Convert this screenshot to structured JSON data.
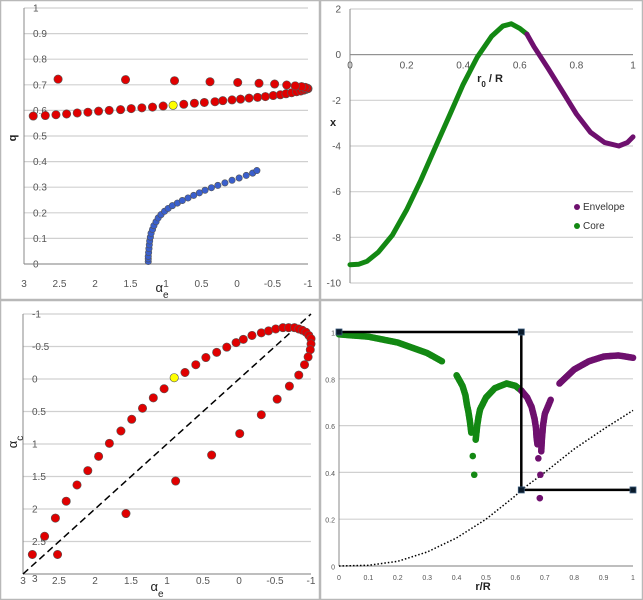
{
  "chart_data": [
    {
      "type": "scatter",
      "xlabel_main": "α",
      "xlabel_sub": "e",
      "ylabel": "q",
      "xlim": [
        3,
        -1
      ],
      "ylim": [
        0,
        1
      ],
      "x_reversed": true,
      "xticks": [
        "3",
        "2.5",
        "2",
        "1.5",
        "1",
        "0.5",
        "0",
        "-0.5",
        "-1"
      ],
      "yticks": [
        "0",
        "0.1",
        "0.2",
        "0.3",
        "0.4",
        "0.5",
        "0.6",
        "0.7",
        "0.8",
        "0.9",
        "1"
      ],
      "grid": "horizontal",
      "series": [
        {
          "color": "#e00000",
          "points": [
            [
              2.87,
              0.578
            ],
            [
              2.7,
              0.58
            ],
            [
              2.55,
              0.583
            ],
            [
              2.4,
              0.586
            ],
            [
              2.25,
              0.59
            ],
            [
              2.1,
              0.593
            ],
            [
              1.95,
              0.597
            ],
            [
              1.8,
              0.6
            ],
            [
              1.64,
              0.603
            ],
            [
              1.49,
              0.607
            ],
            [
              1.34,
              0.61
            ],
            [
              1.19,
              0.613
            ],
            [
              1.04,
              0.617
            ],
            [
              0.75,
              0.624
            ],
            [
              0.6,
              0.628
            ],
            [
              0.46,
              0.631
            ],
            [
              0.31,
              0.634
            ],
            [
              0.2,
              0.638
            ],
            [
              0.07,
              0.641
            ],
            [
              -0.05,
              0.644
            ],
            [
              -0.17,
              0.648
            ],
            [
              -0.29,
              0.651
            ],
            [
              -0.4,
              0.654
            ],
            [
              -0.51,
              0.658
            ],
            [
              -0.61,
              0.661
            ],
            [
              -0.69,
              0.665
            ],
            [
              -0.77,
              0.669
            ],
            [
              -0.84,
              0.673
            ],
            [
              -0.9,
              0.676
            ],
            [
              -0.94,
              0.679
            ],
            [
              -0.97,
              0.682
            ],
            [
              -1.0,
              0.685
            ],
            [
              -0.99,
              0.687
            ],
            [
              -0.96,
              0.69
            ],
            [
              -0.91,
              0.693
            ],
            [
              -0.82,
              0.696
            ],
            [
              -0.7,
              0.699
            ],
            [
              -0.53,
              0.703
            ],
            [
              -0.31,
              0.706
            ],
            [
              -0.01,
              0.709
            ],
            [
              0.38,
              0.712
            ],
            [
              0.88,
              0.716
            ],
            [
              1.57,
              0.72
            ],
            [
              2.52,
              0.722
            ]
          ]
        },
        {
          "color": "#ffff00",
          "points": [
            [
              0.9,
              0.62
            ]
          ]
        },
        {
          "color": "#3a5fcd",
          "small": true,
          "points": [
            [
              1.25,
              0.01
            ],
            [
              1.25,
              0.02
            ],
            [
              1.25,
              0.03
            ],
            [
              1.245,
              0.045
            ],
            [
              1.24,
              0.06
            ],
            [
              1.235,
              0.075
            ],
            [
              1.23,
              0.09
            ],
            [
              1.22,
              0.105
            ],
            [
              1.21,
              0.12
            ],
            [
              1.19,
              0.135
            ],
            [
              1.17,
              0.15
            ],
            [
              1.14,
              0.165
            ],
            [
              1.11,
              0.18
            ],
            [
              1.07,
              0.193
            ],
            [
              1.02,
              0.206
            ],
            [
              0.97,
              0.217
            ],
            [
              0.91,
              0.228
            ],
            [
              0.84,
              0.238
            ],
            [
              0.77,
              0.248
            ],
            [
              0.69,
              0.258
            ],
            [
              0.61,
              0.268
            ],
            [
              0.53,
              0.278
            ],
            [
              0.45,
              0.288
            ],
            [
              0.36,
              0.298
            ],
            [
              0.27,
              0.307
            ],
            [
              0.17,
              0.317
            ],
            [
              0.07,
              0.327
            ],
            [
              -0.03,
              0.336
            ],
            [
              -0.13,
              0.346
            ],
            [
              -0.22,
              0.355
            ],
            [
              -0.28,
              0.365
            ]
          ]
        }
      ]
    },
    {
      "type": "line",
      "xlabel_main": "r",
      "xlabel_sub": "0",
      "xlabel_rest": " / R",
      "ylabel": "x",
      "xlim": [
        0,
        1
      ],
      "ylim": [
        -10,
        2
      ],
      "xticks": [
        "0",
        "0.2",
        "0.4",
        "0.6",
        "0.8",
        "1"
      ],
      "yticks": [
        "-10",
        "-8",
        "-6",
        "-4",
        "-2",
        "0",
        "2"
      ],
      "grid": "horizontal",
      "legend": {
        "placement": "lower-right",
        "entries": [
          {
            "name": "Envelope",
            "color": "#6e106e"
          },
          {
            "name": "Core",
            "color": "#138813"
          }
        ]
      },
      "series": [
        {
          "name": "Core",
          "color": "#138813",
          "points": [
            [
              0,
              -9.2
            ],
            [
              0.03,
              -9.18
            ],
            [
              0.06,
              -9.05
            ],
            [
              0.1,
              -8.65
            ],
            [
              0.15,
              -7.9
            ],
            [
              0.2,
              -6.8
            ],
            [
              0.25,
              -5.5
            ],
            [
              0.3,
              -4.1
            ],
            [
              0.35,
              -2.7
            ],
            [
              0.4,
              -1.3
            ],
            [
              0.45,
              -0.1
            ],
            [
              0.5,
              0.8
            ],
            [
              0.54,
              1.25
            ],
            [
              0.57,
              1.35
            ],
            [
              0.6,
              1.15
            ],
            [
              0.625,
              0.9
            ]
          ]
        },
        {
          "name": "Envelope",
          "color": "#6e106e",
          "points": [
            [
              0.625,
              0.9
            ],
            [
              0.65,
              0.35
            ],
            [
              0.7,
              -0.6
            ],
            [
              0.75,
              -1.6
            ],
            [
              0.8,
              -2.6
            ],
            [
              0.85,
              -3.4
            ],
            [
              0.9,
              -3.85
            ],
            [
              0.95,
              -4.0
            ],
            [
              0.98,
              -3.85
            ],
            [
              1.0,
              -3.6
            ]
          ]
        }
      ]
    },
    {
      "type": "scatter",
      "xlabel_main": "α",
      "xlabel_sub": "e",
      "ylabel_main": "α",
      "ylabel_sub": "c",
      "xlim": [
        3,
        -1
      ],
      "ylim": [
        3,
        -1
      ],
      "x_reversed": true,
      "y_reversed": true,
      "xticks": [
        "3",
        "2.5",
        "2",
        "1.5",
        "1",
        "0.5",
        "0",
        "-0.5",
        "-1"
      ],
      "yticks": [
        "3",
        "2.5",
        "2",
        "1.5",
        "1",
        "0.5",
        "0",
        "-0.5",
        "-1"
      ],
      "grid": "horizontal",
      "reference_line": {
        "style": "dashed",
        "color": "#000000",
        "from": [
          3,
          3
        ],
        "to": [
          -1,
          -1
        ]
      },
      "series": [
        {
          "color": "#e00000",
          "points": [
            [
              2.87,
              2.7
            ],
            [
              2.7,
              2.42
            ],
            [
              2.55,
              2.14
            ],
            [
              2.4,
              1.88
            ],
            [
              2.25,
              1.63
            ],
            [
              2.1,
              1.41
            ],
            [
              1.95,
              1.19
            ],
            [
              1.8,
              0.99
            ],
            [
              1.64,
              0.8
            ],
            [
              1.49,
              0.62
            ],
            [
              1.34,
              0.45
            ],
            [
              1.19,
              0.29
            ],
            [
              1.04,
              0.15
            ],
            [
              0.75,
              -0.1
            ],
            [
              0.6,
              -0.22
            ],
            [
              0.46,
              -0.33
            ],
            [
              0.31,
              -0.41
            ],
            [
              0.17,
              -0.49
            ],
            [
              0.04,
              -0.56
            ],
            [
              -0.06,
              -0.61
            ],
            [
              -0.18,
              -0.67
            ],
            [
              -0.31,
              -0.71
            ],
            [
              -0.41,
              -0.74
            ],
            [
              -0.51,
              -0.77
            ],
            [
              -0.61,
              -0.79
            ],
            [
              -0.69,
              -0.79
            ],
            [
              -0.77,
              -0.79
            ],
            [
              -0.83,
              -0.77
            ],
            [
              -0.88,
              -0.75
            ],
            [
              -0.93,
              -0.72
            ],
            [
              -0.97,
              -0.67
            ],
            [
              -1.0,
              -0.62
            ],
            [
              -1.0,
              -0.54
            ],
            [
              -0.99,
              -0.45
            ],
            [
              -0.96,
              -0.34
            ],
            [
              -0.91,
              -0.22
            ],
            [
              -0.83,
              -0.06
            ],
            [
              -0.7,
              0.11
            ],
            [
              -0.53,
              0.31
            ],
            [
              -0.31,
              0.55
            ],
            [
              -0.01,
              0.84
            ],
            [
              0.38,
              1.17
            ],
            [
              0.88,
              1.57
            ],
            [
              1.57,
              2.07
            ],
            [
              2.52,
              2.7
            ]
          ]
        },
        {
          "color": "#ffff00",
          "points": [
            [
              0.9,
              -0.02
            ]
          ]
        }
      ]
    },
    {
      "type": "scatter",
      "xlabel": "r/R",
      "xlim": [
        0,
        1
      ],
      "ylim": [
        0,
        1
      ],
      "xticks": [
        "0",
        "0.1",
        "0.2",
        "0.3",
        "0.4",
        "0.5",
        "0.6",
        "0.7",
        "0.8",
        "0.9",
        "1"
      ],
      "yticks": [
        "0",
        "0.2",
        "0.4",
        "0.6",
        "0.8",
        "1"
      ],
      "grid": "horizontal",
      "step_line": {
        "color": "#000000",
        "points": [
          [
            0,
            1
          ],
          [
            0.62,
            1
          ],
          [
            0.62,
            0.325
          ],
          [
            1,
            0.325
          ]
        ]
      },
      "dotted_curve": {
        "color": "#000000",
        "points": [
          [
            0,
            0
          ],
          [
            0.1,
            0.003
          ],
          [
            0.2,
            0.02
          ],
          [
            0.3,
            0.06
          ],
          [
            0.4,
            0.12
          ],
          [
            0.5,
            0.2
          ],
          [
            0.6,
            0.3
          ],
          [
            0.62,
            0.325
          ],
          [
            0.7,
            0.4
          ],
          [
            0.8,
            0.5
          ],
          [
            0.9,
            0.585
          ],
          [
            1.0,
            0.665
          ]
        ]
      },
      "series": [
        {
          "name": "Core",
          "color": "#138813",
          "points": [
            [
              0,
              0.99
            ],
            [
              0.1,
              0.98
            ],
            [
              0.2,
              0.955
            ],
            [
              0.3,
              0.91
            ],
            [
              0.35,
              0.875
            ],
            [
              0.4,
              0.815
            ],
            [
              0.42,
              0.77
            ],
            [
              0.43,
              0.73
            ],
            [
              0.435,
              0.69
            ],
            [
              0.44,
              0.66
            ],
            [
              0.445,
              0.62
            ],
            [
              0.45,
              0.57
            ],
            [
              0.455,
              0.47
            ],
            [
              0.46,
              0.39
            ],
            [
              0.465,
              0.54
            ],
            [
              0.47,
              0.6
            ],
            [
              0.475,
              0.64
            ],
            [
              0.48,
              0.67
            ],
            [
              0.5,
              0.72
            ],
            [
              0.53,
              0.76
            ],
            [
              0.57,
              0.78
            ],
            [
              0.6,
              0.77
            ],
            [
              0.62,
              0.75
            ]
          ]
        },
        {
          "name": "Envelope",
          "color": "#6e106e",
          "points": [
            [
              0.62,
              0.75
            ],
            [
              0.64,
              0.72
            ],
            [
              0.655,
              0.68
            ],
            [
              0.665,
              0.63
            ],
            [
              0.67,
              0.59
            ],
            [
              0.672,
              0.55
            ],
            [
              0.675,
              0.52
            ],
            [
              0.678,
              0.46
            ],
            [
              0.683,
              0.29
            ],
            [
              0.685,
              0.39
            ],
            [
              0.688,
              0.49
            ],
            [
              0.69,
              0.54
            ],
            [
              0.694,
              0.6
            ],
            [
              0.7,
              0.65
            ],
            [
              0.72,
              0.71
            ],
            [
              0.75,
              0.78
            ],
            [
              0.8,
              0.84
            ],
            [
              0.85,
              0.875
            ],
            [
              0.9,
              0.895
            ],
            [
              0.95,
              0.9
            ],
            [
              1.0,
              0.89
            ]
          ]
        }
      ]
    }
  ]
}
